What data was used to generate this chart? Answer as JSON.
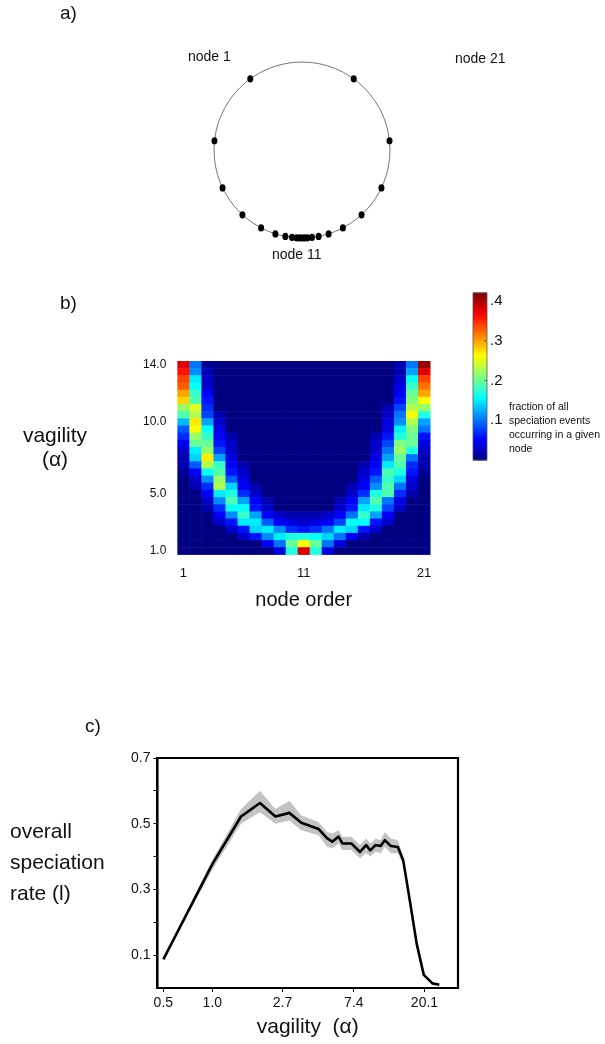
{
  "chart_data": [
    {
      "type": "other",
      "title": "a)",
      "annotations": [
        "node 1",
        "node 21",
        "node 11"
      ]
    },
    {
      "type": "heatmap",
      "title": "b)",
      "xlabel": "node order",
      "ylabel": "vagility (α)",
      "clabel": "fraction of all speciation events occurring in a given node",
      "categories": [
        "1",
        null,
        null,
        null,
        null,
        null,
        null,
        null,
        null,
        null,
        "11",
        null,
        null,
        null,
        null,
        null,
        null,
        null,
        null,
        null,
        "21"
      ],
      "y_categories": [
        "14.0",
        null,
        null,
        null,
        null,
        null,
        null,
        null,
        "10.0",
        null,
        null,
        null,
        null,
        null,
        null,
        null,
        null,
        null,
        "5.0",
        null,
        null,
        null,
        null,
        null,
        null,
        null,
        "1.0"
      ],
      "cells": [
        [
          0.38,
          0.1,
          0.01,
          0,
          0,
          0,
          0,
          0,
          0,
          0,
          0,
          0,
          0,
          0,
          0,
          0,
          0,
          0,
          0.02,
          0.1,
          0.41
        ],
        [
          0.36,
          0.11,
          0.02,
          0,
          0,
          0,
          0,
          0,
          0,
          0,
          0,
          0,
          0,
          0,
          0,
          0,
          0,
          0,
          0.02,
          0.12,
          0.38
        ],
        [
          0.34,
          0.15,
          0.03,
          0,
          0,
          0,
          0,
          0,
          0,
          0,
          0,
          0,
          0,
          0,
          0,
          0,
          0,
          0,
          0.03,
          0.16,
          0.34
        ],
        [
          0.33,
          0.16,
          0.03,
          0,
          0,
          0,
          0,
          0,
          0,
          0,
          0,
          0,
          0,
          0,
          0,
          0,
          0,
          0,
          0.04,
          0.18,
          0.32
        ],
        [
          0.3,
          0.18,
          0.05,
          0,
          0,
          0,
          0,
          0,
          0,
          0,
          0,
          0,
          0,
          0,
          0,
          0,
          0,
          0,
          0.05,
          0.2,
          0.3
        ],
        [
          0.28,
          0.19,
          0.06,
          0,
          0,
          0,
          0,
          0,
          0,
          0,
          0,
          0,
          0,
          0,
          0,
          0,
          0,
          0,
          0.06,
          0.21,
          0.26
        ],
        [
          0.22,
          0.25,
          0.07,
          0,
          0,
          0,
          0,
          0,
          0,
          0,
          0,
          0,
          0,
          0,
          0,
          0,
          0,
          0.02,
          0.08,
          0.23,
          0.22
        ],
        [
          0.19,
          0.23,
          0.08,
          0.02,
          0,
          0,
          0,
          0,
          0,
          0,
          0,
          0,
          0,
          0,
          0,
          0,
          0,
          0.03,
          0.1,
          0.26,
          0.17
        ],
        [
          0.13,
          0.27,
          0.12,
          0.03,
          0,
          0,
          0,
          0,
          0,
          0,
          0,
          0,
          0,
          0,
          0,
          0,
          0,
          0.04,
          0.11,
          0.23,
          0.12
        ],
        [
          0.09,
          0.26,
          0.16,
          0.04,
          0,
          0,
          0,
          0,
          0,
          0,
          0,
          0,
          0,
          0,
          0,
          0,
          0,
          0.04,
          0.15,
          0.21,
          0.1
        ],
        [
          0.07,
          0.22,
          0.18,
          0.05,
          0.02,
          0,
          0,
          0,
          0,
          0,
          0,
          0,
          0,
          0,
          0,
          0,
          0.02,
          0.06,
          0.17,
          0.2,
          0.06
        ],
        [
          0.05,
          0.2,
          0.2,
          0.06,
          0.03,
          0,
          0,
          0,
          0,
          0,
          0,
          0,
          0,
          0,
          0,
          0,
          0.03,
          0.08,
          0.21,
          0.2,
          0.04
        ],
        [
          0.03,
          0.15,
          0.22,
          0.08,
          0.03,
          0,
          0,
          0,
          0,
          0,
          0,
          0,
          0,
          0,
          0,
          0,
          0.03,
          0.1,
          0.22,
          0.17,
          0.03
        ],
        [
          0.02,
          0.14,
          0.27,
          0.12,
          0.04,
          0,
          0,
          0,
          0,
          0,
          0,
          0,
          0,
          0,
          0,
          0,
          0.04,
          0.12,
          0.2,
          0.1,
          0.02
        ],
        [
          0.02,
          0.09,
          0.23,
          0.18,
          0.05,
          0.02,
          0,
          0,
          0,
          0,
          0,
          0,
          0,
          0,
          0,
          0.02,
          0.05,
          0.15,
          0.19,
          0.07,
          0.02
        ],
        [
          0.01,
          0.05,
          0.16,
          0.19,
          0.06,
          0.03,
          0,
          0,
          0,
          0,
          0,
          0,
          0,
          0,
          0,
          0.03,
          0.06,
          0.19,
          0.17,
          0.06,
          0.01
        ],
        [
          0,
          0.03,
          0.11,
          0.22,
          0.09,
          0.04,
          0,
          0,
          0,
          0,
          0,
          0,
          0,
          0,
          0,
          0.04,
          0.09,
          0.18,
          0.14,
          0.04,
          0
        ],
        [
          0,
          0.02,
          0.07,
          0.23,
          0.14,
          0.05,
          0.02,
          0,
          0,
          0,
          0,
          0,
          0,
          0,
          0.02,
          0.05,
          0.11,
          0.19,
          0.1,
          0.03,
          0
        ],
        [
          0,
          0,
          0.05,
          0.15,
          0.17,
          0.07,
          0.03,
          0,
          0,
          0,
          0,
          0,
          0,
          0,
          0.03,
          0.07,
          0.17,
          0.19,
          0.07,
          0.02,
          0
        ],
        [
          0,
          0,
          0.03,
          0.11,
          0.19,
          0.12,
          0.05,
          0.02,
          0,
          0,
          0,
          0,
          0,
          0.02,
          0.05,
          0.12,
          0.19,
          0.1,
          0.04,
          0,
          0
        ],
        [
          0,
          0,
          0.02,
          0.07,
          0.16,
          0.16,
          0.06,
          0.03,
          0,
          0,
          0,
          0,
          0,
          0.03,
          0.06,
          0.15,
          0.17,
          0.08,
          0.03,
          0,
          0
        ],
        [
          0,
          0,
          0,
          0.05,
          0.11,
          0.18,
          0.12,
          0.05,
          0.03,
          0.02,
          0.02,
          0.02,
          0.03,
          0.05,
          0.1,
          0.18,
          0.12,
          0.05,
          0,
          0,
          0
        ],
        [
          0,
          0,
          0,
          0.03,
          0.06,
          0.15,
          0.15,
          0.09,
          0.05,
          0.04,
          0.03,
          0.04,
          0.05,
          0.08,
          0.16,
          0.16,
          0.06,
          0.03,
          0,
          0,
          0
        ],
        [
          0,
          0,
          0,
          0,
          0.03,
          0.06,
          0.14,
          0.15,
          0.11,
          0.07,
          0.06,
          0.07,
          0.1,
          0.15,
          0.14,
          0.06,
          0.03,
          0,
          0,
          0,
          0
        ],
        [
          0,
          0,
          0,
          0,
          0,
          0.03,
          0.06,
          0.11,
          0.15,
          0.17,
          0.17,
          0.16,
          0.14,
          0.1,
          0.05,
          0.02,
          0,
          0,
          0,
          0,
          0
        ],
        [
          0,
          0,
          0,
          0,
          0,
          0,
          0,
          0.05,
          0.1,
          0.2,
          0.26,
          0.2,
          0.1,
          0.04,
          0,
          0,
          0,
          0,
          0,
          0,
          0
        ],
        [
          0,
          0,
          0,
          0,
          0,
          0,
          0,
          0,
          0.04,
          0.17,
          0.38,
          0.17,
          0.04,
          0,
          0,
          0,
          0,
          0,
          0,
          0,
          0
        ]
      ],
      "clim": [
        0,
        0.42
      ],
      "cticks": [
        {
          "value": 0.1,
          "label": ".1"
        },
        {
          "value": 0.2,
          "label": ".2"
        },
        {
          "value": 0.3,
          "label": ".3"
        },
        {
          "value": 0.4,
          "label": ".4"
        }
      ]
    },
    {
      "type": "line",
      "title": "c)",
      "xlabel": "vagility  (α)",
      "ylabel": "overall speciation rate  (l)",
      "log": "x",
      "grid": false,
      "xlim": [
        0.46,
        32.3
      ],
      "xticks": [
        {
          "value": 0.5,
          "label": "0.5"
        },
        {
          "value": 1,
          "label": "1.0"
        },
        {
          "value": 2.7,
          "label": "2.7"
        },
        {
          "value": 7.4,
          "label": "7.4"
        },
        {
          "value": 20.1,
          "label": "20.1"
        }
      ],
      "ylim": [
        0,
        0.7
      ],
      "yticks": [
        0.1,
        {
          "value": 0.2,
          "label": null
        },
        0.3,
        {
          "value": 0.4,
          "label": null
        },
        0.5,
        {
          "value": 0.6,
          "label": null
        },
        0.7
      ],
      "x": [
        0.5,
        1.0,
        1.5,
        1.96,
        2.44,
        2.97,
        3.52,
        4.49,
        5.06,
        5.46,
        5.96,
        6.3,
        7.14,
        8.08,
        8.81,
        9.34,
        10.05,
        10.8,
        11.47,
        12.5,
        13.8,
        14.9,
        16.4,
        18.0,
        19.9,
        22.5,
        24.8
      ],
      "series": [
        {
          "color": "#000000",
          "values": [
            0.087,
            0.377,
            0.522,
            0.563,
            0.522,
            0.533,
            0.503,
            0.484,
            0.456,
            0.445,
            0.461,
            0.44,
            0.44,
            0.414,
            0.435,
            0.419,
            0.435,
            0.432,
            0.45,
            0.432,
            0.429,
            0.387,
            0.261,
            0.135,
            0.04,
            0.014,
            0.01
          ],
          "lower": [
            0.087,
            0.36,
            0.5,
            0.535,
            0.5,
            0.51,
            0.48,
            0.465,
            0.43,
            0.425,
            0.44,
            0.42,
            0.42,
            0.395,
            0.41,
            0.4,
            0.415,
            0.41,
            0.43,
            0.41,
            0.41,
            0.375,
            0.261,
            0.135,
            0.04,
            0.014,
            0.01
          ],
          "upper": [
            0.087,
            0.39,
            0.545,
            0.6,
            0.545,
            0.57,
            0.525,
            0.505,
            0.475,
            0.47,
            0.48,
            0.46,
            0.46,
            0.435,
            0.455,
            0.44,
            0.455,
            0.45,
            0.475,
            0.455,
            0.45,
            0.4,
            0.261,
            0.135,
            0.04,
            0.014,
            0.01
          ]
        }
      ]
    }
  ]
}
